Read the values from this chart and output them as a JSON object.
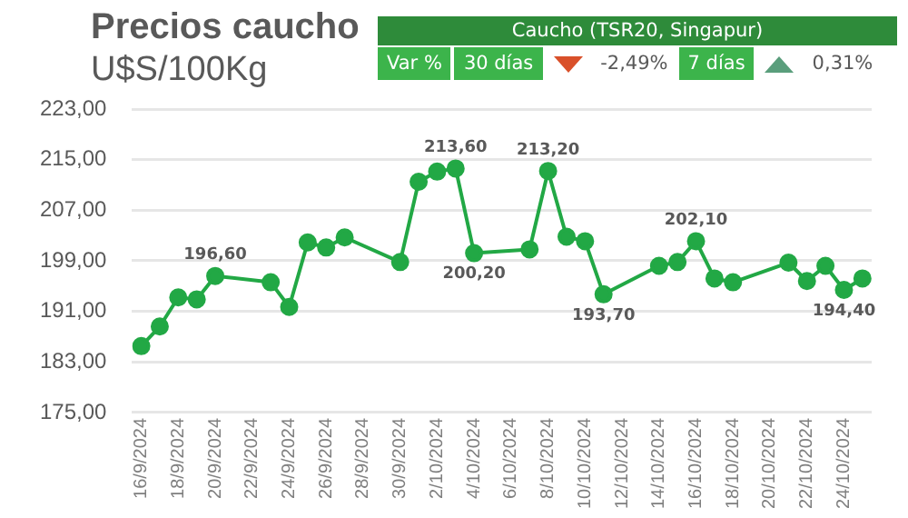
{
  "chart_data": {
    "type": "line",
    "title": "Precios caucho",
    "subtitle": "U$S/100Kg",
    "annotations": [
      "Caucho (TSR20, Singapur)",
      "Var %",
      "30 días",
      "-2,49%",
      "7 días",
      "0,31%"
    ],
    "x": [
      "2024-09-16",
      "2024-09-17",
      "2024-09-18",
      "2024-09-19",
      "2024-09-20",
      "2024-09-23",
      "2024-09-24",
      "2024-09-25",
      "2024-09-26",
      "2024-09-27",
      "2024-09-30",
      "2024-10-01",
      "2024-10-02",
      "2024-10-03",
      "2024-10-04",
      "2024-10-07",
      "2024-10-08",
      "2024-10-09",
      "2024-10-10",
      "2024-10-11",
      "2024-10-14",
      "2024-10-15",
      "2024-10-16",
      "2024-10-17",
      "2024-10-18",
      "2024-10-21",
      "2024-10-22",
      "2024-10-23",
      "2024-10-24",
      "2024-10-25"
    ],
    "series": [
      {
        "color": "#22a845",
        "values": [
          185.5,
          188.6,
          193.2,
          192.9,
          196.6,
          195.6,
          191.7,
          201.9,
          201.1,
          202.7,
          198.8,
          211.5,
          213.1,
          213.6,
          200.2,
          200.8,
          213.2,
          202.8,
          202.1,
          193.7,
          198.2,
          198.8,
          202.1,
          196.2,
          195.6,
          198.7,
          195.8,
          198.2,
          194.4,
          196.2
        ],
        "value_labels": [
          null,
          null,
          null,
          null,
          "196,60",
          null,
          null,
          null,
          null,
          null,
          null,
          null,
          null,
          "213,60",
          "200,20",
          null,
          "213,20",
          null,
          null,
          "193,70",
          null,
          null,
          "202,10",
          null,
          null,
          null,
          null,
          null,
          "194,40",
          null
        ]
      }
    ],
    "xlim": [
      "2024-09-15T12:00",
      "2024-10-25T12:00"
    ],
    "xticks": [
      {
        "value": "2024-09-16",
        "label": "16/9/2024"
      },
      {
        "value": "2024-09-18",
        "label": "18/9/2024"
      },
      {
        "value": "2024-09-20",
        "label": "20/9/2024"
      },
      {
        "value": "2024-09-22",
        "label": "22/9/2024"
      },
      {
        "value": "2024-09-24",
        "label": "24/9/2024"
      },
      {
        "value": "2024-09-26",
        "label": "26/9/2024"
      },
      {
        "value": "2024-09-28",
        "label": "28/9/2024"
      },
      {
        "value": "2024-09-30",
        "label": "30/9/2024"
      },
      {
        "value": "2024-10-02",
        "label": "2/10/2024"
      },
      {
        "value": "2024-10-04",
        "label": "4/10/2024"
      },
      {
        "value": "2024-10-06",
        "label": "6/10/2024"
      },
      {
        "value": "2024-10-08",
        "label": "8/10/2024"
      },
      {
        "value": "2024-10-10",
        "label": "10/10/2024"
      },
      {
        "value": "2024-10-12",
        "label": "12/10/2024"
      },
      {
        "value": "2024-10-14",
        "label": "14/10/2024"
      },
      {
        "value": "2024-10-16",
        "label": "16/10/2024"
      },
      {
        "value": "2024-10-18",
        "label": "18/10/2024"
      },
      {
        "value": "2024-10-20",
        "label": "20/10/2024"
      },
      {
        "value": "2024-10-22",
        "label": "22/10/2024"
      },
      {
        "value": "2024-10-24",
        "label": "24/10/2024"
      }
    ],
    "ylim": [
      175,
      223
    ],
    "yticks": [
      {
        "value": 175,
        "label": "175,00"
      },
      {
        "value": 183,
        "label": "183,00"
      },
      {
        "value": 191,
        "label": "191,00"
      },
      {
        "value": 199,
        "label": "199,00"
      },
      {
        "value": 207,
        "label": "207,00"
      },
      {
        "value": 215,
        "label": "215,00"
      },
      {
        "value": 223,
        "label": "223,00"
      }
    ],
    "grid": "y",
    "legend": false,
    "marker": "circle",
    "line_style": "solid"
  }
}
